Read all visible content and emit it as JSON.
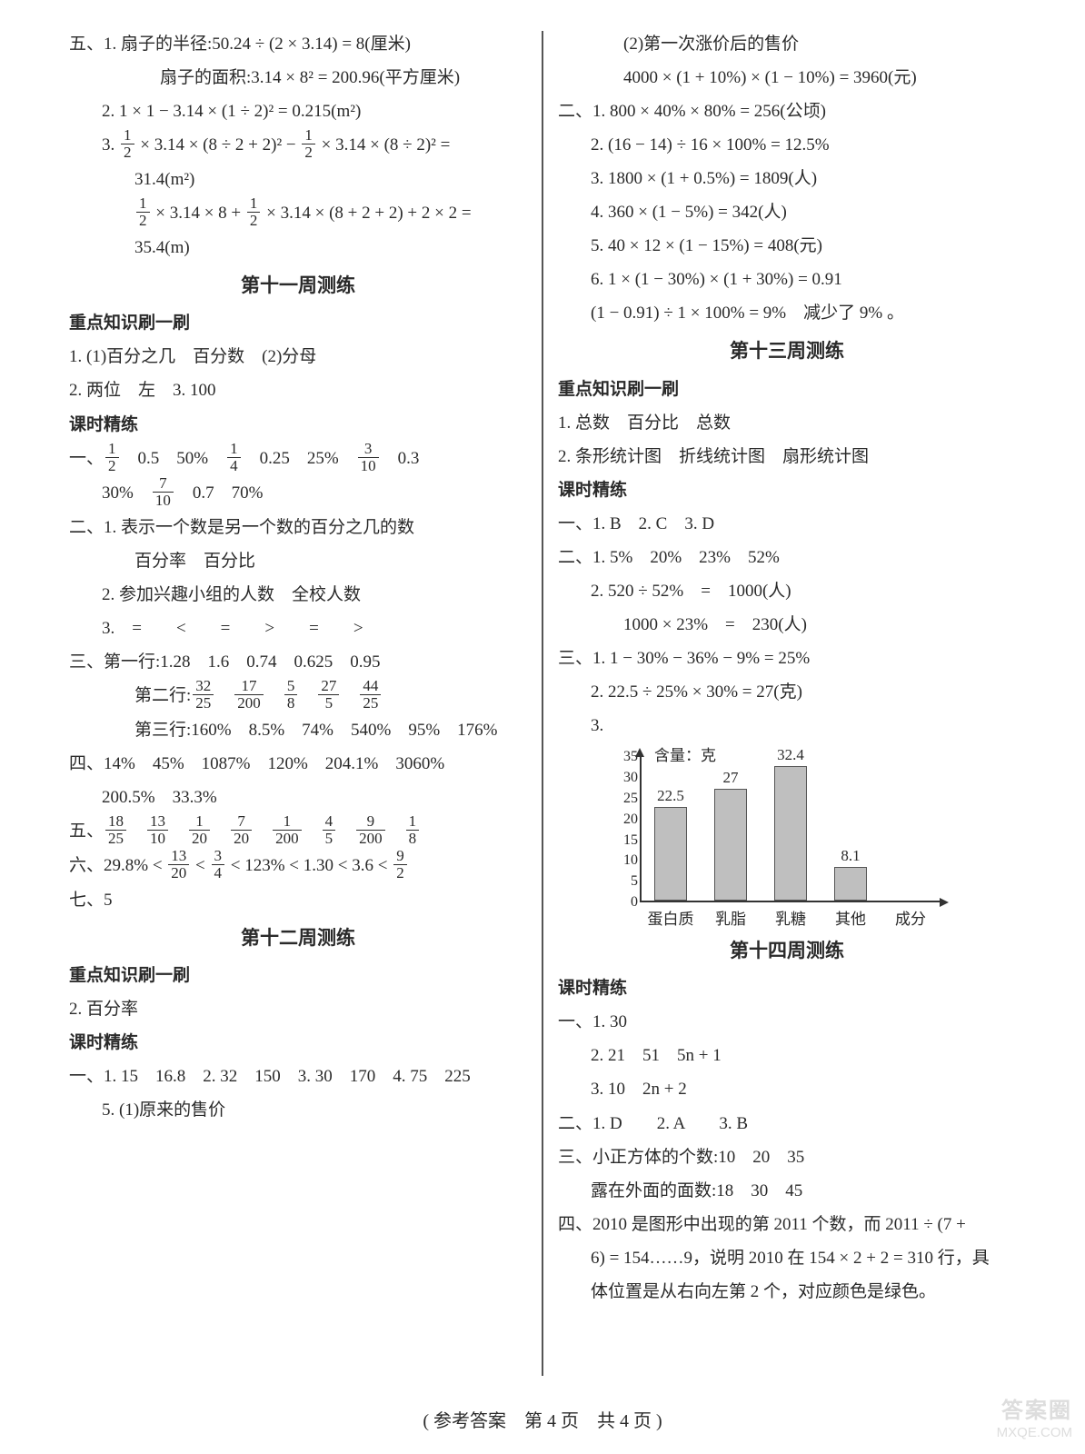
{
  "left": {
    "wu": {
      "l1": "五、1. 扇子的半径:50.24 ÷ (2 × 3.14) = 8(厘米)",
      "l2": "扇子的面积:3.14 × 8² = 200.96(平方厘米)",
      "l3": "2. 1 × 1 − 3.14 × (1 ÷ 2)² = 0.215(m²)",
      "l4a": "3. ",
      "l4b": " × 3.14 × (8 ÷ 2 + 2)² − ",
      "l4c": " × 3.14 × (8 ÷ 2)² =",
      "l5": "31.4(m²)",
      "l6a": " × 3.14 × 8 + ",
      "l6b": " × 3.14 × (8 + 2 + 2) + 2 × 2 =",
      "l7": "35.4(m)"
    },
    "t11": "第十一周测练",
    "zd1": "重点知识刷一刷",
    "zd1_1": "1. (1)百分之几　百分数　(2)分母",
    "zd1_2": "2. 两位　左　3. 100",
    "ks": "课时精练",
    "yi_a": "一、",
    "yi_b": "　0.5　50%　",
    "yi_c": "　0.25　25%　",
    "yi_d": "　0.3",
    "yi_e": "30%　",
    "yi_f": "　0.7　70%",
    "er1": "二、1. 表示一个数是另一个数的百分之几的数",
    "er1b": "百分率　百分比",
    "er2": "2. 参加兴趣小组的人数　全校人数",
    "er3": "3.　=　　<　　=　　>　　=　　>",
    "san1": "三、第一行:1.28　1.6　0.74　0.625　0.95",
    "san2a": "第二行:",
    "san3": "第三行:160%　8.5%　74%　540%　95%　176%",
    "si": "四、14%　45%　1087%　120%　204.1%　3060%",
    "si2": "200.5%　33.3%",
    "wu5a": "五、",
    "liu_a": "六、29.8% < ",
    "liu_b": " < ",
    "liu_c": " < 123% < 1.30 < 3.6 < ",
    "qi": "七、5",
    "t12": "第十二周测练",
    "zd2": "重点知识刷一刷",
    "zd2_2": "2. 百分率",
    "ks2": "课时精练",
    "ks2_1": "一、1. 15　16.8　2. 32　150　3. 30　170　4. 75　225",
    "ks2_5": "5. (1)原来的售价"
  },
  "right": {
    "r1": "(2)第一次涨价后的售价",
    "r2": "4000 × (1 + 10%) × (1 − 10%) = 3960(元)",
    "er": {
      "l1": "二、1. 800 × 40% × 80% = 256(公顷)",
      "l2": "2. (16 − 14) ÷ 16 × 100% = 12.5%",
      "l3": "3. 1800 × (1 + 0.5%) = 1809(人)",
      "l4": "4. 360 × (1 − 5%) = 342(人)",
      "l5": "5. 40 × 12 × (1 − 15%) = 408(元)",
      "l6": "6. 1 × (1 − 30%) × (1 + 30%) = 0.91",
      "l7": "(1 − 0.91) ÷ 1 × 100% = 9%　减少了 9% 。"
    },
    "t13": "第十三周测练",
    "zd": "重点知识刷一刷",
    "zd1": "1. 总数　百分比　总数",
    "zd2": "2. 条形统计图　折线统计图　扇形统计图",
    "ks": "课时精练",
    "yi": "一、1. B　2. C　3. D",
    "er2_1": "二、1. 5%　20%　23%　52%",
    "er2_2": "2. 520 ÷ 52%　=　1000(人)",
    "er2_3": "1000 × 23%　=　230(人)",
    "san1": "三、1. 1 − 30% − 36% − 9% = 25%",
    "san2": "2. 22.5 ÷ 25% × 30% = 27(克)",
    "san3": "3.",
    "chart": {
      "ylabel": "含量：克",
      "ymax": 35,
      "ticks": [
        0,
        5,
        10,
        15,
        20,
        25,
        30,
        35
      ],
      "categories": [
        "蛋白质",
        "乳脂",
        "乳糖",
        "其他",
        "成分"
      ],
      "values": [
        22.5,
        27,
        32.4,
        8.1
      ],
      "bar_color": "#bfbfbf",
      "axis_color": "#333333",
      "label_fontsize": 17
    },
    "t14": "第十四周测练",
    "ks2": "课时精练",
    "yi2_1": "一、1. 30",
    "yi2_2": "2. 21　51　5n + 1",
    "yi2_3": "3. 10　2n + 2",
    "er3": "二、1. D　　2. A　　3. B",
    "san_a": "三、小正方体的个数:10　20　35",
    "san_b": "露在外面的面数:18　30　45",
    "si": "四、2010 是图形中出现的第 2011 个数，而 2011 ÷ (7 +",
    "si2": "6) = 154……9，说明 2010 在 154 × 2 + 2 = 310 行，具",
    "si3": "体位置是从右向左第 2 个，对应颜色是绿色。"
  },
  "footer": "( 参考答案　第 4 页　共 4 页 )",
  "fractions": {
    "half": {
      "n": "1",
      "d": "2"
    },
    "quarter": {
      "n": "1",
      "d": "4"
    },
    "three_ten": {
      "n": "3",
      "d": "10"
    },
    "seven_ten": {
      "n": "7",
      "d": "10"
    },
    "f32_25": {
      "n": "32",
      "d": "25"
    },
    "f17_200": {
      "n": "17",
      "d": "200"
    },
    "f5_8": {
      "n": "5",
      "d": "8"
    },
    "f27_5": {
      "n": "27",
      "d": "5"
    },
    "f44_25": {
      "n": "44",
      "d": "25"
    },
    "f18_25": {
      "n": "18",
      "d": "25"
    },
    "f13_10": {
      "n": "13",
      "d": "10"
    },
    "f1_20": {
      "n": "1",
      "d": "20"
    },
    "f7_20": {
      "n": "7",
      "d": "20"
    },
    "f1_200": {
      "n": "1",
      "d": "200"
    },
    "f4_5": {
      "n": "4",
      "d": "5"
    },
    "f9_200": {
      "n": "9",
      "d": "200"
    },
    "f1_8": {
      "n": "1",
      "d": "8"
    },
    "f13_20": {
      "n": "13",
      "d": "20"
    },
    "f3_4": {
      "n": "3",
      "d": "4"
    },
    "f9_2": {
      "n": "9",
      "d": "2"
    }
  }
}
